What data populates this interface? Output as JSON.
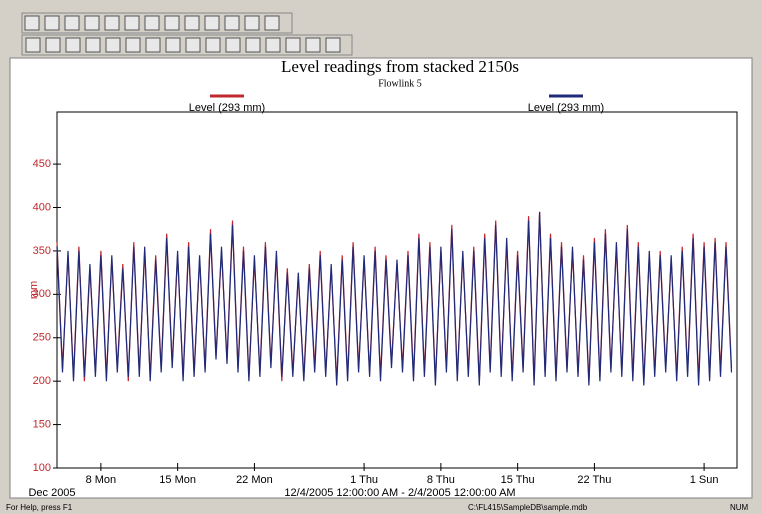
{
  "chart_data": {
    "type": "line",
    "title": "Level readings from stacked 2150s",
    "subtitle": "Flowlink 5",
    "y_label": "mm",
    "x_axis_year": "Dec 2005",
    "x_range_label": "12/4/2005 12:00:00 AM - 2/4/2005 12:00:00 AM",
    "x": [
      3,
      3.5,
      4,
      4.5,
      5,
      5.5,
      6,
      6.5,
      7,
      7.5,
      8,
      8.5,
      9,
      9.5,
      10,
      10.5,
      11,
      11.5,
      12,
      12.5,
      13,
      13.5,
      14,
      14.5,
      15,
      15.5,
      16,
      16.5,
      17,
      17.5,
      18,
      18.5,
      19,
      19.5,
      20,
      20.5,
      21,
      21.5,
      22,
      22.5,
      23,
      23.5,
      24,
      24.5,
      25,
      25.5,
      26,
      26.5,
      27,
      27.5,
      28,
      28.5,
      29,
      29.5,
      30,
      30.5,
      31,
      31.5,
      32,
      32.5,
      33,
      33.5,
      34,
      34.5,
      35,
      35.5,
      36,
      36.5,
      37,
      37.5,
      38,
      38.5,
      39,
      39.5,
      40,
      40.5,
      41,
      41.5,
      42,
      42.5,
      43,
      43.5,
      44,
      44.5,
      45,
      45.5,
      46,
      46.5,
      47,
      47.5,
      48,
      48.5,
      49,
      49.5,
      50,
      50.5,
      51,
      51.5,
      52,
      52.5,
      53,
      53.5,
      54,
      54.5,
      55,
      55.5,
      56,
      56.5,
      57,
      57.5,
      58,
      58.5,
      59,
      59.5,
      60,
      60.5,
      61,
      61.5,
      62,
      62.5,
      63,
      63.5,
      64,
      64.5
    ],
    "series": [
      {
        "name": "Level (293 mm)",
        "color": "#c0282d",
        "values": [
          360,
          215,
          345,
          205,
          355,
          200,
          330,
          210,
          350,
          205,
          340,
          215,
          335,
          200,
          360,
          210,
          350,
          205,
          345,
          215,
          370,
          220,
          345,
          205,
          360,
          210,
          340,
          215,
          375,
          230,
          350,
          225,
          385,
          215,
          355,
          205,
          340,
          210,
          360,
          220,
          345,
          200,
          330,
          210,
          320,
          205,
          335,
          215,
          350,
          210,
          330,
          200,
          345,
          205,
          360,
          215,
          340,
          210,
          355,
          205,
          345,
          220,
          335,
          215,
          350,
          205,
          370,
          210,
          360,
          200,
          350,
          215,
          380,
          205,
          345,
          210,
          355,
          200,
          370,
          215,
          385,
          210,
          360,
          205,
          350,
          215,
          390,
          200,
          395,
          210,
          370,
          205,
          360,
          215,
          350,
          210,
          345,
          200,
          365,
          205,
          375,
          215,
          355,
          210,
          380,
          205,
          360,
          200,
          345,
          210,
          350,
          215,
          340,
          205,
          355,
          210,
          370,
          200,
          360,
          205,
          365,
          210,
          360,
          215
        ]
      },
      {
        "name": "Level (293 mm)",
        "color": "#1f2a78",
        "values": [
          355,
          210,
          350,
          200,
          350,
          205,
          335,
          205,
          345,
          200,
          345,
          210,
          330,
          205,
          355,
          205,
          355,
          200,
          340,
          210,
          365,
          215,
          350,
          200,
          355,
          205,
          345,
          210,
          370,
          225,
          355,
          220,
          380,
          210,
          350,
          200,
          345,
          205,
          355,
          215,
          350,
          205,
          325,
          205,
          325,
          200,
          330,
          210,
          345,
          205,
          335,
          195,
          340,
          200,
          355,
          210,
          345,
          205,
          350,
          200,
          340,
          215,
          340,
          210,
          345,
          200,
          365,
          205,
          355,
          195,
          355,
          210,
          375,
          200,
          350,
          205,
          350,
          195,
          365,
          210,
          380,
          205,
          365,
          200,
          345,
          210,
          385,
          195,
          395,
          205,
          365,
          200,
          355,
          210,
          355,
          205,
          340,
          195,
          360,
          200,
          370,
          210,
          360,
          205,
          375,
          200,
          355,
          195,
          350,
          205,
          345,
          210,
          345,
          200,
          350,
          205,
          365,
          195,
          355,
          200,
          360,
          205,
          355,
          210
        ]
      }
    ],
    "xlim": [
      3,
      65
    ],
    "xticks": [
      {
        "value": 7,
        "label": "8 Mon"
      },
      {
        "value": 14,
        "label": "15 Mon"
      },
      {
        "value": 21,
        "label": "22 Mon"
      },
      {
        "value": 31,
        "label": "1 Thu"
      },
      {
        "value": 38,
        "label": "8 Thu"
      },
      {
        "value": 45,
        "label": "15 Thu"
      },
      {
        "value": 52,
        "label": "22 Thu"
      },
      {
        "value": 62,
        "label": "1 Sun"
      }
    ],
    "ylim": [
      100,
      510
    ],
    "yticks": [
      100,
      150,
      200,
      250,
      300,
      350,
      400,
      450
    ]
  },
  "status_bar": {
    "help": "For Help, press F1",
    "path": "C:\\FL415\\SampleDB\\sample.mdb",
    "mode": "NUM"
  }
}
